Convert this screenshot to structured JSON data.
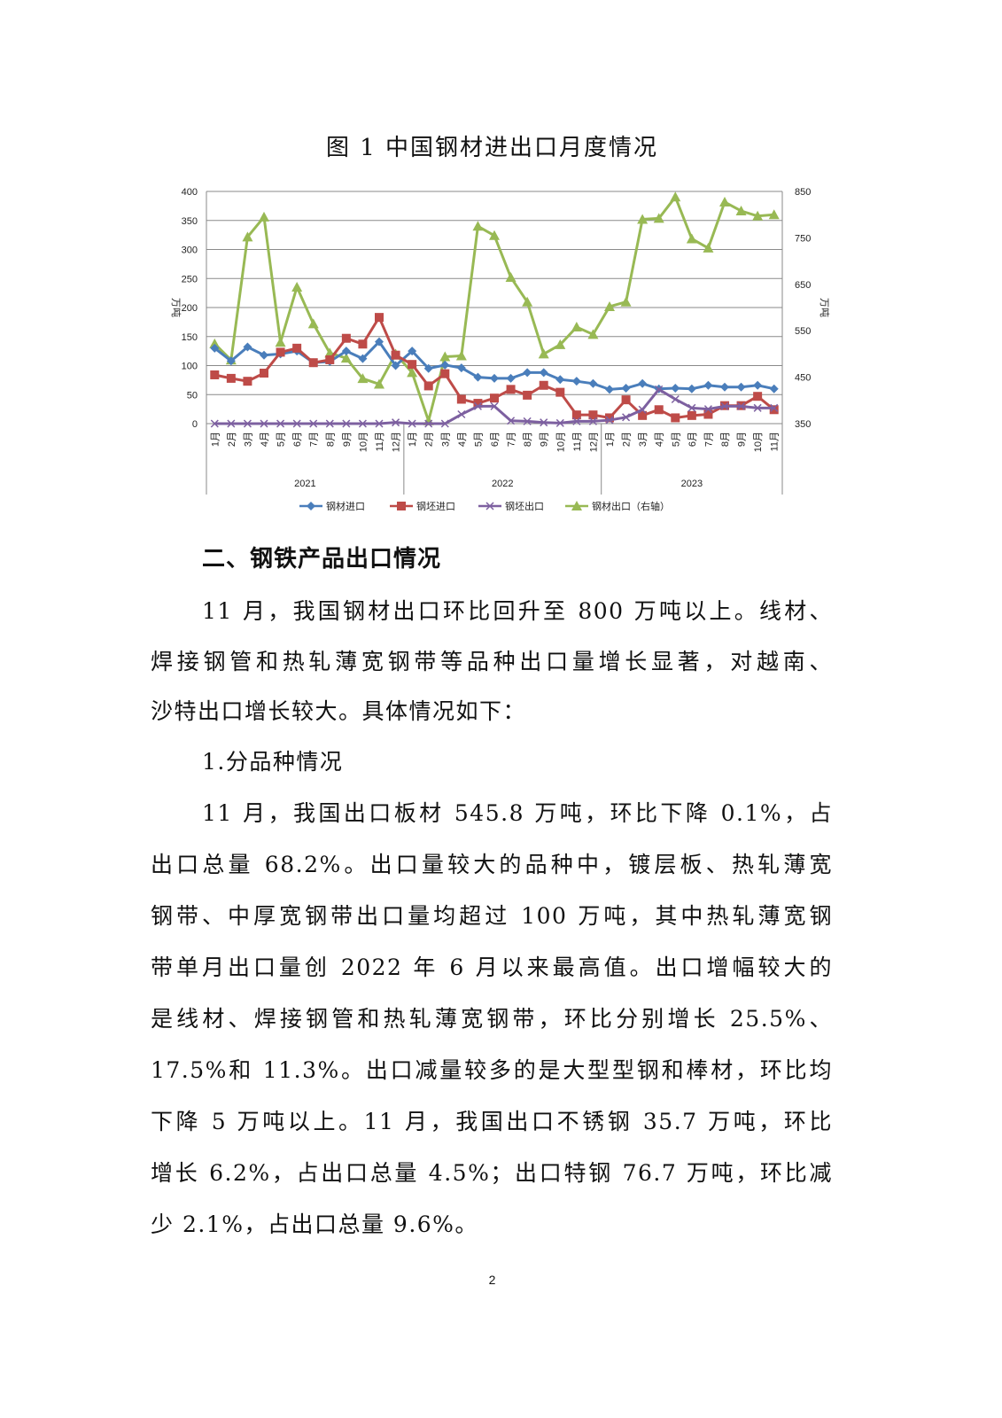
{
  "figure_title": "图 1  中国钢材进出口月度情况",
  "chart_data": {
    "type": "line",
    "title": "图 1  中国钢材进出口月度情况",
    "left_axis": {
      "label": "万吨",
      "range": [
        0,
        400
      ],
      "ticks": [
        "0",
        "50",
        "100",
        "150",
        "200",
        "250",
        "300",
        "350",
        "400"
      ]
    },
    "right_axis": {
      "label": "万吨",
      "range": [
        350,
        850
      ],
      "ticks": [
        "350",
        "450",
        "550",
        "650",
        "750",
        "850"
      ]
    },
    "grid": true,
    "legend_position": "bottom",
    "years": [
      "2021",
      "2022",
      "2023"
    ],
    "categories": [
      "1月",
      "2月",
      "3月",
      "4月",
      "5月",
      "6月",
      "7月",
      "8月",
      "9月",
      "10月",
      "11月",
      "12月",
      "1月",
      "2月",
      "3月",
      "4月",
      "5月",
      "6月",
      "7月",
      "8月",
      "9月",
      "10月",
      "11月",
      "12月",
      "1月",
      "2月",
      "3月",
      "4月",
      "5月",
      "6月",
      "7月",
      "8月",
      "9月",
      "10月",
      "11月"
    ],
    "series": [
      {
        "name": "钢材进口",
        "axis": "left",
        "color": "#4a7ebb",
        "marker": "diamond",
        "values": [
          130,
          108,
          132,
          118,
          120,
          125,
          105,
          107,
          125,
          112,
          141,
          100,
          125,
          95,
          101,
          96,
          80,
          78,
          78,
          88,
          88,
          76,
          73,
          69,
          59,
          61,
          69,
          60,
          61,
          60,
          66,
          63,
          63,
          66,
          60
        ]
      },
      {
        "name": "钢坯进口",
        "axis": "left",
        "color": "#be4b48",
        "marker": "square",
        "values": [
          84,
          78,
          73,
          87,
          123,
          130,
          105,
          110,
          147,
          137,
          183,
          118,
          102,
          65,
          86,
          42,
          35,
          44,
          59,
          49,
          66,
          54,
          15,
          15,
          10,
          41,
          14,
          24,
          10,
          14,
          16,
          31,
          31,
          47,
          24
        ]
      },
      {
        "name": "钢坯出口",
        "axis": "left",
        "color": "#7d60a0",
        "marker": "x",
        "values": [
          0,
          0,
          0,
          0,
          0,
          0,
          0,
          0,
          0,
          0,
          0,
          2,
          0,
          0,
          0,
          16,
          30,
          30,
          5,
          4,
          2,
          1,
          4,
          4,
          6,
          11,
          24,
          59,
          42,
          27,
          25,
          30,
          30,
          27,
          27
        ]
      },
      {
        "name": "钢材出口（右轴）",
        "axis": "right",
        "color": "#98b954",
        "marker": "triangle",
        "values": [
          522,
          487,
          752,
          795,
          525,
          644,
          565,
          502,
          491,
          447,
          435,
          500,
          460,
          356,
          494,
          496,
          775,
          755,
          665,
          612,
          500,
          520,
          558,
          542,
          602,
          612,
          790,
          792,
          838,
          748,
          728,
          827,
          808,
          797,
          800
        ]
      }
    ]
  },
  "heading": "二、钢铁产品出口情况",
  "lines": [
    "11 月，我国钢材出口环比回升至 800 万吨以上。线材、",
    "焊接钢管和热轧薄宽钢带等品种出口量增长显著，对越南、",
    "沙特出口增长较大。具体情况如下：",
    "1.分品种情况",
    "11 月，我国出口板材 545.8 万吨，环比下降 0.1%，占",
    "出口总量 68.2%。出口量较大的品种中，镀层板、热轧薄宽",
    "钢带、中厚宽钢带出口量均超过 100 万吨，其中热轧薄宽钢",
    "带单月出口量创 2022 年 6 月以来最高值。出口增幅较大的",
    "是线材、焊接钢管和热轧薄宽钢带，环比分别增长 25.5%、",
    "17.5%和 11.3%。出口减量较多的是大型型钢和棒材，环比均",
    "下降 5 万吨以上。11 月，我国出口不锈钢 35.7 万吨，环比",
    "增长 6.2%，占出口总量 4.5%；出口特钢 76.7 万吨，环比减",
    "少 2.1%，占出口总量 9.6%。"
  ],
  "page_number": "2"
}
